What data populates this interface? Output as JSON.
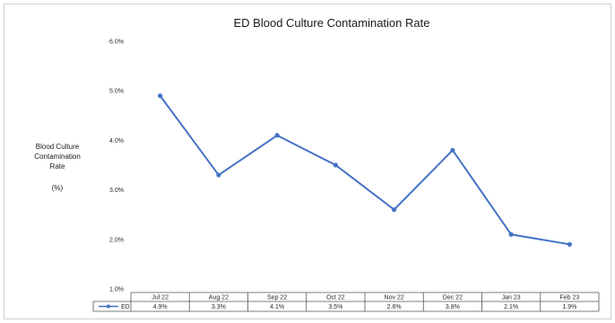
{
  "chart_data": {
    "type": "line",
    "title": "ED Blood Culture Contamination Rate",
    "ylabel_lines": [
      "Blood Culture",
      "Contamination",
      "Rate"
    ],
    "ylabel_unit": "(%)",
    "yticks": [
      "6.0%",
      "5.0%",
      "4.0%",
      "3.0%",
      "2.0%",
      "1.0%"
    ],
    "ytick_values": [
      6.0,
      5.0,
      4.0,
      3.0,
      2.0,
      1.0
    ],
    "ylim": [
      1.0,
      6.0
    ],
    "grid": false,
    "categories": [
      "Jul 22",
      "Aug 22",
      "Sep 22",
      "Oct 22",
      "Nov 22",
      "Dec 22",
      "Jan 23",
      "Feb 23"
    ],
    "series": [
      {
        "name": "ED",
        "values": [
          4.9,
          3.3,
          4.1,
          3.5,
          2.6,
          3.8,
          2.1,
          1.9
        ],
        "labels": [
          "4.9%",
          "3.3%",
          "4.1%",
          "3.5%",
          "2.6%",
          "3.8%",
          "2.1%",
          "1.9%"
        ],
        "color": "#4472c4"
      }
    ],
    "legend": "data-table"
  }
}
